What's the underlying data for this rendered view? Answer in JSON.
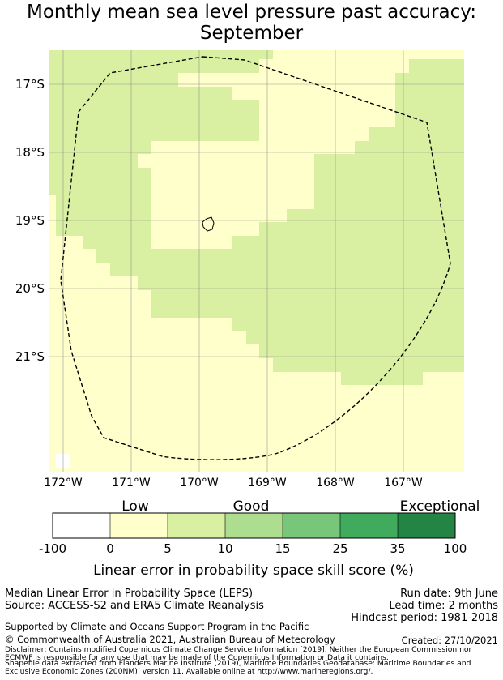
{
  "title_line1": "Monthly mean sea level pressure past accuracy:",
  "title_line2": "September",
  "map": {
    "lat_labels": [
      "17°S",
      "18°S",
      "19°S",
      "20°S",
      "21°S"
    ],
    "lon_labels": [
      "172°W",
      "171°W",
      "170°W",
      "169°W",
      "168°W",
      "167°W"
    ],
    "colors": {
      "skill_0_5": "#ffffcc",
      "skill_5_10": "#d9f0a3",
      "border": "#000000",
      "grid": "#808080"
    }
  },
  "colorbar": {
    "category_labels": [
      "Low",
      "Good",
      "Exceptional"
    ],
    "bins": [
      {
        "range": "-100 to 0",
        "color": "#ffffff"
      },
      {
        "range": "0 to 5",
        "color": "#ffffcc"
      },
      {
        "range": "5 to 10",
        "color": "#d9f0a3"
      },
      {
        "range": "10 to 15",
        "color": "#addd8e"
      },
      {
        "range": "15 to 25",
        "color": "#78c679"
      },
      {
        "range": "25 to 35",
        "color": "#41ab5d"
      },
      {
        "range": "35 to 100",
        "color": "#238443"
      }
    ],
    "tick_labels": [
      "-100",
      "0",
      "5",
      "10",
      "15",
      "25",
      "35",
      "100"
    ],
    "axis_label": "Linear error in probability space skill score (%)"
  },
  "footer": {
    "method": "Median Linear Error in Probability Space (LEPS)",
    "source": "Source: ACCESS-S2 and ERA5 Climate Reanalysis",
    "run_date": "Run date: 9th June",
    "lead_time": "Lead time: 2 months",
    "hindcast": "Hindcast period: 1981-2018",
    "support": "Supported by Climate and Oceans Support Program in the Pacific",
    "copyright": "© Commonwealth of Australia 2021, Australian Bureau of Meteorology",
    "created": "Created: 27/10/2021",
    "disclaimer_1": "Disclaimer: Contains modified Copernicus Climate Change Service Information [2019]. Neither the European Commission nor",
    "disclaimer_2": "ECMWF is responsible for any use that may be made of the Copernicus Information or Data it contains.",
    "shapefile_1": "Shapefile data extracted from Flanders Marine Institute (2019), Maritime Boundaries Geodatabase: Maritime Boundaries and",
    "shapefile_2": "Exclusive Economic Zones (200NM), version 11. Available online at http://www.marineregions.org/."
  }
}
